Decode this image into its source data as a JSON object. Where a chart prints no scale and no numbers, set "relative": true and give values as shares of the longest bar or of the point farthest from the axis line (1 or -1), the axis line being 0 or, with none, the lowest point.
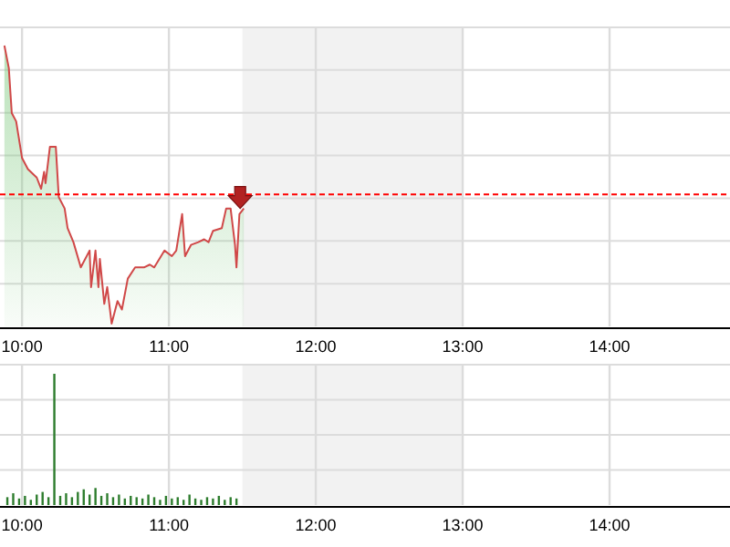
{
  "chart_data": [
    {
      "type": "area",
      "relative": true,
      "grid": true,
      "xlim": [
        9.85,
        14.82
      ],
      "xticks": [
        {
          "value": 10,
          "label": "10:00"
        },
        {
          "value": 11,
          "label": "11:00"
        },
        {
          "value": 12,
          "label": "12:00"
        },
        {
          "value": 13,
          "label": "13:00"
        },
        {
          "value": 14,
          "label": "14:00"
        }
      ],
      "ref_lines": [
        {
          "axis": "y",
          "value": 0.47,
          "color": "#ff0000",
          "line_style": "dashed"
        }
      ],
      "bands": [
        {
          "axis": "x",
          "from": 11.5,
          "to": 13,
          "color": "#f2f2f2"
        }
      ],
      "series": [
        {
          "color": "#d04848",
          "x": [
            9.88,
            9.91,
            9.93,
            9.96,
            10.0,
            10.04,
            10.1,
            10.13,
            10.15,
            10.16,
            10.19,
            10.23,
            10.25,
            10.29,
            10.31,
            10.35,
            10.4,
            10.46,
            10.47,
            10.5,
            10.52,
            10.53,
            10.56,
            10.58,
            10.61,
            10.65,
            10.68,
            10.72,
            10.77,
            10.83,
            10.87,
            10.9,
            10.97,
            11.02,
            11.05,
            11.09,
            11.11,
            11.15,
            11.2,
            11.24,
            11.27,
            11.3,
            11.36,
            11.39,
            11.42,
            11.45,
            11.46,
            11.48,
            11.51
          ],
          "values": [
            1.0,
            0.92,
            0.76,
            0.73,
            0.6,
            0.56,
            0.53,
            0.49,
            0.55,
            0.51,
            0.64,
            0.64,
            0.46,
            0.42,
            0.35,
            0.3,
            0.21,
            0.27,
            0.14,
            0.27,
            0.14,
            0.24,
            0.08,
            0.14,
            0.01,
            0.09,
            0.06,
            0.17,
            0.21,
            0.21,
            0.22,
            0.21,
            0.27,
            0.25,
            0.27,
            0.4,
            0.25,
            0.29,
            0.3,
            0.31,
            0.3,
            0.34,
            0.35,
            0.42,
            0.42,
            0.29,
            0.21,
            0.4,
            0.42
          ]
        }
      ]
    },
    {
      "type": "bar",
      "relative": true,
      "grid": true,
      "xlim": [
        9.85,
        14.82
      ],
      "xticks": [
        {
          "value": 10,
          "label": "10:00"
        },
        {
          "value": 11,
          "label": "11:00"
        },
        {
          "value": 12,
          "label": "12:00"
        },
        {
          "value": 13,
          "label": "13:00"
        },
        {
          "value": 14,
          "label": "14:00"
        }
      ],
      "bands": [
        {
          "axis": "x",
          "from": 11.5,
          "to": 13,
          "color": "#f2f2f2"
        }
      ],
      "series": [
        {
          "color": "#2e7d2e",
          "x": [
            9.9,
            9.94,
            9.98,
            10.02,
            10.06,
            10.1,
            10.14,
            10.18,
            10.22,
            10.26,
            10.3,
            10.34,
            10.38,
            10.42,
            10.46,
            10.5,
            10.54,
            10.58,
            10.62,
            10.66,
            10.7,
            10.74,
            10.78,
            10.82,
            10.86,
            10.9,
            10.94,
            10.98,
            11.02,
            11.06,
            11.1,
            11.14,
            11.18,
            11.22,
            11.26,
            11.3,
            11.34,
            11.38,
            11.42,
            11.46
          ],
          "values": [
            0.06,
            0.09,
            0.05,
            0.07,
            0.04,
            0.08,
            0.1,
            0.06,
            1.0,
            0.07,
            0.09,
            0.06,
            0.1,
            0.12,
            0.08,
            0.13,
            0.07,
            0.09,
            0.06,
            0.08,
            0.05,
            0.07,
            0.06,
            0.05,
            0.08,
            0.06,
            0.04,
            0.07,
            0.05,
            0.06,
            0.04,
            0.08,
            0.05,
            0.04,
            0.06,
            0.05,
            0.07,
            0.04,
            0.06,
            0.05
          ]
        }
      ]
    }
  ]
}
